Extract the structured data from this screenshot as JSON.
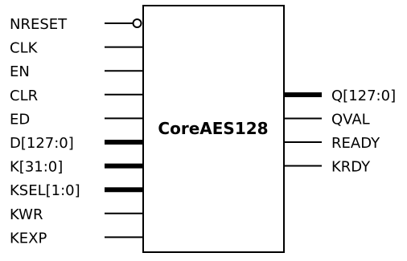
{
  "block": {
    "name": "CoreAES128"
  },
  "inputs": [
    {
      "label": "NRESET",
      "kind": "inverted"
    },
    {
      "label": "CLK",
      "kind": "single"
    },
    {
      "label": "EN",
      "kind": "single"
    },
    {
      "label": "CLR",
      "kind": "single"
    },
    {
      "label": "ED",
      "kind": "single"
    },
    {
      "label": "D[127:0]",
      "kind": "bus"
    },
    {
      "label": "K[31:0]",
      "kind": "bus"
    },
    {
      "label": "KSEL[1:0]",
      "kind": "bus"
    },
    {
      "label": "KWR",
      "kind": "single"
    },
    {
      "label": "KEXP",
      "kind": "single"
    }
  ],
  "outputs": [
    {
      "label": "Q[127:0]",
      "kind": "bus"
    },
    {
      "label": "QVAL",
      "kind": "single"
    },
    {
      "label": "READY",
      "kind": "single"
    },
    {
      "label": "KRDY",
      "kind": "single"
    }
  ],
  "colors": {
    "line": "#000000",
    "background": "#ffffff"
  }
}
